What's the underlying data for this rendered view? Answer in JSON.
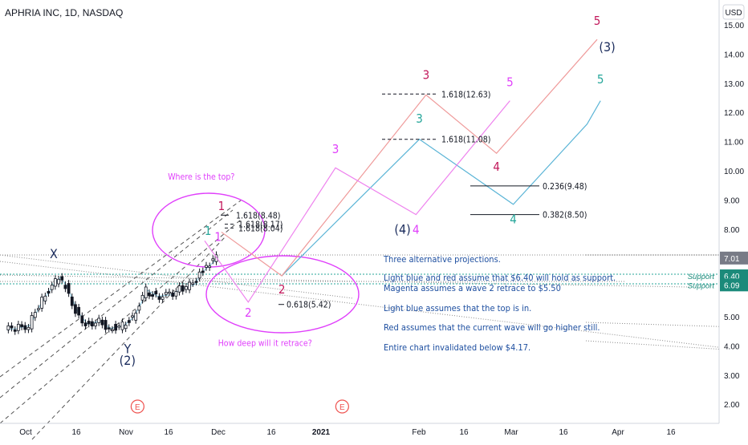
{
  "header": {
    "symbol_title": "APHRIA INC, 1D, NASDAQ",
    "currency": "USD"
  },
  "colors": {
    "light_blue": "#5ab4d6",
    "red": "#ef9a9a",
    "magenta": "#ee82ee",
    "wave_label_red": "#c2185b",
    "wave_label_blue": "#26a69a",
    "wave_label_magenta": "#e040fb",
    "navy": "#1a2b5c",
    "annotation_text": "#1e4fa0",
    "price_badge": "#1b8a7a",
    "current_price_badge": "#787b86",
    "up_candle": "#ffffff",
    "down_candle": "#131722"
  },
  "chart_data": {
    "type": "line",
    "title": "APHRIA INC, 1D, NASDAQ",
    "xlabel": "",
    "ylabel": "USD",
    "x_ticks": [
      "Oct",
      "16",
      "Nov",
      "16",
      "Dec",
      "16",
      "2021",
      "Feb",
      "16",
      "Mar",
      "16",
      "Apr",
      "16"
    ],
    "y_ticks": [
      15.0,
      14.0,
      13.0,
      12.0,
      11.0,
      10.0,
      9.0,
      8.0,
      7.0,
      6.0,
      5.0,
      4.0,
      3.0,
      2.0
    ],
    "ylim": [
      1.45,
      15.6
    ],
    "grid": false,
    "price_labels": [
      {
        "text": "7.01",
        "value": 7.01,
        "style": "current"
      },
      {
        "text": "6.40",
        "value": 6.4,
        "style": "support",
        "tag": "Support"
      },
      {
        "text": "6.09",
        "value": 6.09,
        "style": "support",
        "tag": "Support"
      }
    ],
    "series": [
      {
        "name": "Light blue",
        "color": "#5ab4d6",
        "x": [
          "2020-12-19",
          "2021-01-29",
          "2021-02-26",
          "2021-03-20",
          "2021-03-24"
        ],
        "y": [
          6.4,
          11.08,
          8.85,
          11.6,
          12.4
        ]
      },
      {
        "name": "Red",
        "color": "#ef9a9a",
        "x": [
          "2020-12-01",
          "2020-12-19",
          "2021-01-31",
          "2021-02-21",
          "2021-03-23"
        ],
        "y": [
          7.9,
          6.4,
          12.6,
          10.6,
          14.5
        ]
      },
      {
        "name": "Magenta",
        "color": "#ee82ee",
        "x": [
          "2020-11-26",
          "2020-12-09",
          "2021-01-04",
          "2021-01-28",
          "2021-02-25"
        ],
        "y": [
          7.6,
          5.5,
          10.1,
          8.5,
          12.4
        ]
      }
    ],
    "price_history": {
      "x": [
        "2020-09-28",
        "2020-10-01",
        "2020-10-05",
        "2020-10-08",
        "2020-10-12",
        "2020-10-14",
        "2020-10-16",
        "2020-10-19",
        "2020-10-22",
        "2020-10-26",
        "2020-10-29",
        "2020-11-02",
        "2020-11-05",
        "2020-11-09",
        "2020-11-12",
        "2020-11-16",
        "2020-11-19",
        "2020-11-23",
        "2020-11-25",
        "2020-11-27",
        "2020-11-30"
      ],
      "y": [
        4.55,
        4.6,
        4.7,
        5.4,
        6.1,
        6.35,
        6.05,
        5.2,
        4.75,
        4.85,
        4.6,
        4.7,
        5.0,
        5.9,
        5.7,
        5.75,
        5.95,
        6.1,
        6.5,
        6.7,
        7.01
      ]
    },
    "levels": [
      {
        "label": "1.618(12.63)",
        "value": 12.63
      },
      {
        "label": "1.618(11.08)",
        "value": 11.08
      },
      {
        "label": "0.236(9.48)",
        "value": 9.48
      },
      {
        "label": "0.382(8.50)",
        "value": 8.5
      },
      {
        "label": "1.618(8.48)",
        "value": 8.48
      },
      {
        "label": "1.618(8.17)",
        "value": 8.17
      },
      {
        "label": "1.618(8.04)",
        "value": 8.04
      },
      {
        "label": "0.618(5.42)",
        "value": 5.42
      }
    ],
    "wave_labels": [
      {
        "text": "X",
        "color": "navy",
        "x": "2020-10-12",
        "y": 7.0
      },
      {
        "text": "Y",
        "color": "navy",
        "x": "2020-11-03",
        "y": 3.75
      },
      {
        "text": "(2)",
        "color": "navy",
        "x": "2020-11-03",
        "y": 3.35
      },
      {
        "text": "1",
        "color": "wave_label_red",
        "x": "2020-12-01",
        "y": 8.65
      },
      {
        "text": "1",
        "color": "wave_label_blue",
        "x": "2020-11-27",
        "y": 7.8
      },
      {
        "text": "1",
        "color": "wave_label_magenta",
        "x": "2020-11-30",
        "y": 7.6
      },
      {
        "text": "2",
        "color": "wave_label_red",
        "x": "2020-12-19",
        "y": 5.8
      },
      {
        "text": "2",
        "color": "wave_label_magenta",
        "x": "2020-12-09",
        "y": 5.0
      },
      {
        "text": "3",
        "color": "wave_label_magenta",
        "x": "2021-01-04",
        "y": 10.6
      },
      {
        "text": "3",
        "color": "wave_label_blue",
        "x": "2021-01-29",
        "y": 11.65
      },
      {
        "text": "3",
        "color": "wave_label_red",
        "x": "2021-01-31",
        "y": 13.15
      },
      {
        "text": "4",
        "color": "wave_label_magenta",
        "x": "2021-01-28",
        "y": 7.85
      },
      {
        "text": "(4)",
        "color": "navy",
        "x": "2021-01-24",
        "y": 7.85
      },
      {
        "text": "4",
        "color": "wave_label_red",
        "x": "2021-02-21",
        "y": 10.0
      },
      {
        "text": "4",
        "color": "wave_label_blue",
        "x": "2021-02-26",
        "y": 8.2
      },
      {
        "text": "5",
        "color": "wave_label_magenta",
        "x": "2021-02-25",
        "y": 12.9
      },
      {
        "text": "5",
        "color": "wave_label_blue",
        "x": "2021-03-24",
        "y": 13.0
      },
      {
        "text": "5",
        "color": "wave_label_red",
        "x": "2021-03-23",
        "y": 15.0
      },
      {
        "text": "(3)",
        "color": "navy",
        "x": "2021-03-26",
        "y": 14.1
      }
    ],
    "callouts": [
      {
        "text": "Where is the top?",
        "x": "2020-11-25",
        "y": 9.7
      },
      {
        "text": "How deep will it retrace?",
        "x": "2020-12-14",
        "y": 4.0
      }
    ],
    "events": [
      {
        "text": "E",
        "x": "2020-11-06"
      },
      {
        "text": "E",
        "x": "2021-01-06"
      }
    ],
    "notes": [
      "Three alternative projections.",
      "Light blue and red assume that $6.40 will hold as support.",
      "Magenta assumes a wave 2 retrace to $5.50",
      "Light blue assumes that the top is in.",
      "Red assumes that the current wave will go higher still.",
      "Entire chart invalidated below $4.17."
    ]
  }
}
